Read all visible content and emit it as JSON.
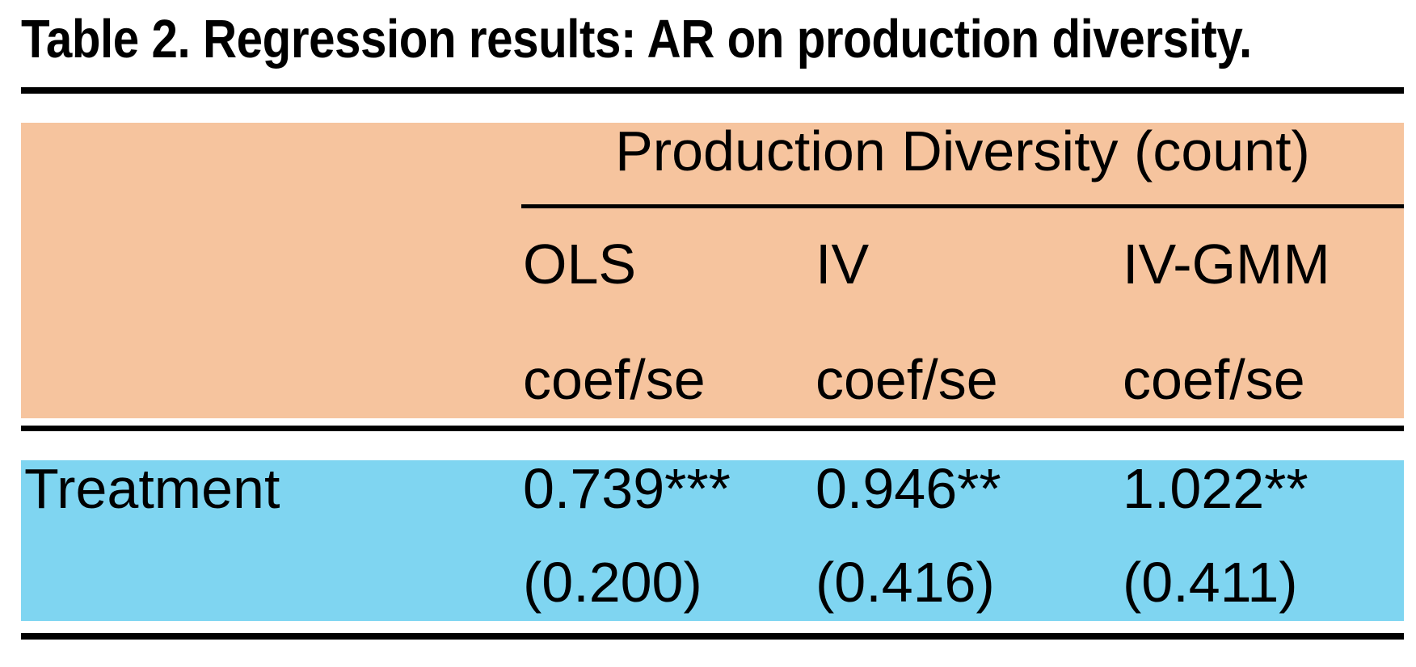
{
  "title": "Table 2. Regression results: AR on production diversity.",
  "table": {
    "spanning_header": "Production Diversity (count)",
    "columns": [
      {
        "label": "OLS",
        "sublabel": "coef/se"
      },
      {
        "label": "IV",
        "sublabel": "coef/se"
      },
      {
        "label": "IV-GMM",
        "sublabel": "coef/se"
      }
    ],
    "rows": [
      {
        "label": "Treatment",
        "coefficients": [
          "0.739***",
          "0.946**",
          "1.022**"
        ],
        "standard_errors": [
          "(0.200)",
          "(0.416)",
          "(0.411)"
        ]
      }
    ]
  },
  "colors": {
    "page_bg": "#FFFFFF",
    "header_bg": "#F6C49E",
    "body_bg": "#7FD5F1",
    "rule": "#000000",
    "text": "#000000"
  },
  "chart_data": {
    "type": "table",
    "title": "Table 2. Regression results: AR on production diversity.",
    "column_group": "Production Diversity (count)",
    "columns": [
      "OLS",
      "IV",
      "IV-GMM"
    ],
    "measure": "coef/se",
    "rows": [
      {
        "variable": "Treatment",
        "OLS": {
          "coef": 0.739,
          "se": 0.2,
          "stars": "***"
        },
        "IV": {
          "coef": 0.946,
          "se": 0.416,
          "stars": "**"
        },
        "IV_GMM": {
          "coef": 1.022,
          "se": 0.411,
          "stars": "**"
        }
      }
    ]
  }
}
